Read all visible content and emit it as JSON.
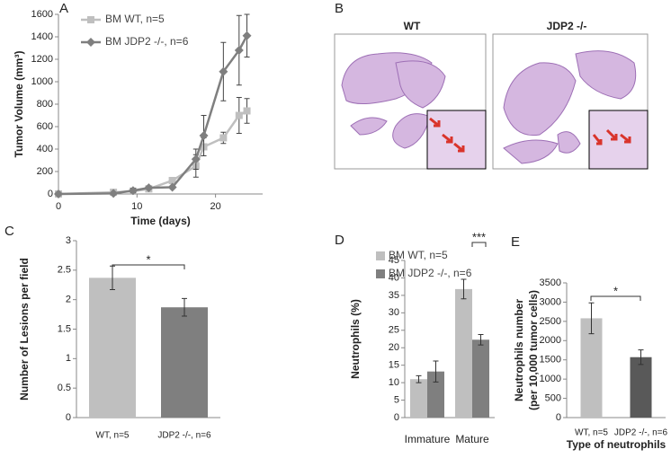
{
  "chart_data": [
    {
      "panel": "A",
      "type": "line",
      "x_label": "Time (days)",
      "y_label": "Tumor Volume (mm³)",
      "xlim": [
        0,
        26
      ],
      "xticks": [
        0,
        10,
        20
      ],
      "ylim": [
        0,
        1600
      ],
      "yticks": [
        0,
        200,
        400,
        600,
        800,
        1000,
        1200,
        1400,
        1600
      ],
      "series": [
        {
          "name": "BM WT, n=5",
          "color": "#bfbfbf",
          "marker": "square",
          "x": [
            0,
            7,
            9.5,
            11.5,
            14.5,
            17.5,
            18.5,
            21,
            23,
            24
          ],
          "values": [
            0,
            15,
            25,
            45,
            120,
            250,
            420,
            500,
            700,
            740
          ],
          "errors": [
            0,
            20,
            20,
            20,
            20,
            100,
            80,
            50,
            160,
            110
          ]
        },
        {
          "name": "BM JDP2 -/-, n=6",
          "color": "#7f7f7f",
          "marker": "diamond",
          "x": [
            0,
            7,
            9.5,
            11.5,
            14.5,
            17.5,
            18.5,
            21,
            23,
            24
          ],
          "values": [
            0,
            5,
            30,
            55,
            60,
            310,
            520,
            1090,
            1280,
            1410
          ],
          "errors": [
            0,
            10,
            20,
            15,
            10,
            90,
            180,
            260,
            310,
            190
          ]
        }
      ]
    },
    {
      "panel": "C",
      "type": "bar",
      "y_label": [
        "Number of Lesions per field"
      ],
      "categories": [
        "WT, n=5",
        "JDP2 -/-, n=6"
      ],
      "ylim": [
        0,
        3
      ],
      "yticks": [
        0,
        0.5,
        1,
        1.5,
        2,
        2.5,
        3
      ],
      "series": [
        {
          "values": [
            2.37,
            1.87
          ],
          "errors": [
            0.2,
            0.15
          ],
          "colors": [
            "#bfbfbf",
            "#7f7f7f"
          ]
        }
      ],
      "annotations": [
        "*"
      ]
    },
    {
      "panel": "D",
      "type": "bar",
      "y_label": [
        "Neutrophils (%)"
      ],
      "categories": [
        "Immature",
        "Mature"
      ],
      "ylim": [
        0,
        45
      ],
      "yticks": [
        0,
        5,
        10,
        15,
        20,
        25,
        30,
        35,
        40,
        45
      ],
      "series": [
        {
          "name": "BM WT, n=5",
          "color": "#bfbfbf",
          "values": [
            11,
            36.8
          ],
          "errors": [
            1,
            2.8
          ]
        },
        {
          "name": "BM JDP2 -/-, n=6",
          "color": "#7f7f7f",
          "values": [
            13.2,
            22.3
          ],
          "errors": [
            3,
            1.5
          ]
        }
      ],
      "annotations": [
        "***"
      ]
    },
    {
      "panel": "E",
      "type": "bar",
      "x_label": "Type of neutrophils",
      "y_label": [
        "Neutrophils number",
        "(per 10,000 tumor cells)"
      ],
      "categories": [
        "WT, n=5",
        "JDP2 -/-, n=6"
      ],
      "ylim": [
        0,
        3500
      ],
      "yticks": [
        0,
        500,
        1000,
        1500,
        2000,
        2500,
        3000,
        3500
      ],
      "series": [
        {
          "values": [
            2580,
            1570
          ],
          "errors": [
            400,
            190
          ],
          "colors": [
            "#bfbfbf",
            "#595959"
          ]
        }
      ],
      "annotations": [
        "*"
      ]
    }
  ],
  "histology": {
    "panel": "B",
    "titles": [
      "WT",
      "JDP2 -/-"
    ]
  }
}
